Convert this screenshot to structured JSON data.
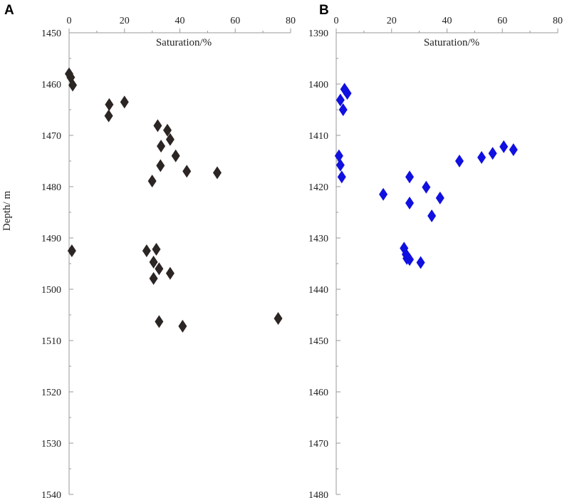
{
  "chart_data": [
    {
      "panel": "A",
      "type": "scatter",
      "xlabel": "Saturation/%",
      "ylabel": "Depth/ m",
      "xlim": [
        0,
        80
      ],
      "ylim": [
        1450,
        1540
      ],
      "y_inverted": true,
      "x_ticks": [
        0,
        20,
        40,
        60,
        80
      ],
      "y_ticks": [
        1450,
        1460,
        1470,
        1480,
        1490,
        1500,
        1510,
        1520,
        1530,
        1540
      ],
      "x_axis_position": "top",
      "grid": false,
      "marker": "diamond",
      "marker_color": "#2b2523",
      "points": [
        {
          "x": 0,
          "y": 1458
        },
        {
          "x": 0.6,
          "y": 1458.7
        },
        {
          "x": 1.3,
          "y": 1460.2
        },
        {
          "x": 14.5,
          "y": 1464
        },
        {
          "x": 20,
          "y": 1463.5
        },
        {
          "x": 14.3,
          "y": 1466.2
        },
        {
          "x": 32,
          "y": 1468.1
        },
        {
          "x": 35.5,
          "y": 1469
        },
        {
          "x": 36.5,
          "y": 1470.8
        },
        {
          "x": 33.2,
          "y": 1472.1
        },
        {
          "x": 38.5,
          "y": 1474
        },
        {
          "x": 53.5,
          "y": 1477.3
        },
        {
          "x": 33,
          "y": 1475.9
        },
        {
          "x": 42.5,
          "y": 1477
        },
        {
          "x": 30,
          "y": 1478.9
        },
        {
          "x": 1,
          "y": 1492.5
        },
        {
          "x": 28,
          "y": 1492.5
        },
        {
          "x": 31.5,
          "y": 1492.2
        },
        {
          "x": 30.5,
          "y": 1494.7
        },
        {
          "x": 32.5,
          "y": 1496
        },
        {
          "x": 36.5,
          "y": 1496.9
        },
        {
          "x": 30.5,
          "y": 1497.9
        },
        {
          "x": 32.5,
          "y": 1506.3
        },
        {
          "x": 41,
          "y": 1507.2
        },
        {
          "x": 75.5,
          "y": 1505.7
        }
      ]
    },
    {
      "panel": "B",
      "type": "scatter",
      "xlabel": "Saturation/%",
      "ylabel": "",
      "xlim": [
        0,
        80
      ],
      "ylim": [
        1390,
        1480
      ],
      "y_inverted": true,
      "x_ticks": [
        0,
        20,
        40,
        60,
        80
      ],
      "y_ticks": [
        1390,
        1400,
        1410,
        1420,
        1430,
        1440,
        1450,
        1460,
        1470,
        1480
      ],
      "x_axis_position": "top",
      "grid": false,
      "marker": "diamond",
      "marker_color": "#1010e0",
      "points": [
        {
          "x": 3,
          "y": 1401
        },
        {
          "x": 4,
          "y": 1401.8
        },
        {
          "x": 1.5,
          "y": 1403.1
        },
        {
          "x": 2.5,
          "y": 1405
        },
        {
          "x": 1,
          "y": 1414
        },
        {
          "x": 1.5,
          "y": 1415.8
        },
        {
          "x": 2,
          "y": 1418.1
        },
        {
          "x": 26.5,
          "y": 1418.1
        },
        {
          "x": 32.5,
          "y": 1420.1
        },
        {
          "x": 17,
          "y": 1421.5
        },
        {
          "x": 37.5,
          "y": 1422.2
        },
        {
          "x": 26.5,
          "y": 1423.2
        },
        {
          "x": 34.5,
          "y": 1425.7
        },
        {
          "x": 44.5,
          "y": 1415
        },
        {
          "x": 52.5,
          "y": 1414.3
        },
        {
          "x": 56.5,
          "y": 1413.5
        },
        {
          "x": 60.5,
          "y": 1412.2
        },
        {
          "x": 64,
          "y": 1412.8
        },
        {
          "x": 24.5,
          "y": 1432
        },
        {
          "x": 25.2,
          "y": 1433.2
        },
        {
          "x": 26.5,
          "y": 1434.2
        },
        {
          "x": 25.5,
          "y": 1434
        },
        {
          "x": 30.5,
          "y": 1434.8
        }
      ]
    }
  ]
}
